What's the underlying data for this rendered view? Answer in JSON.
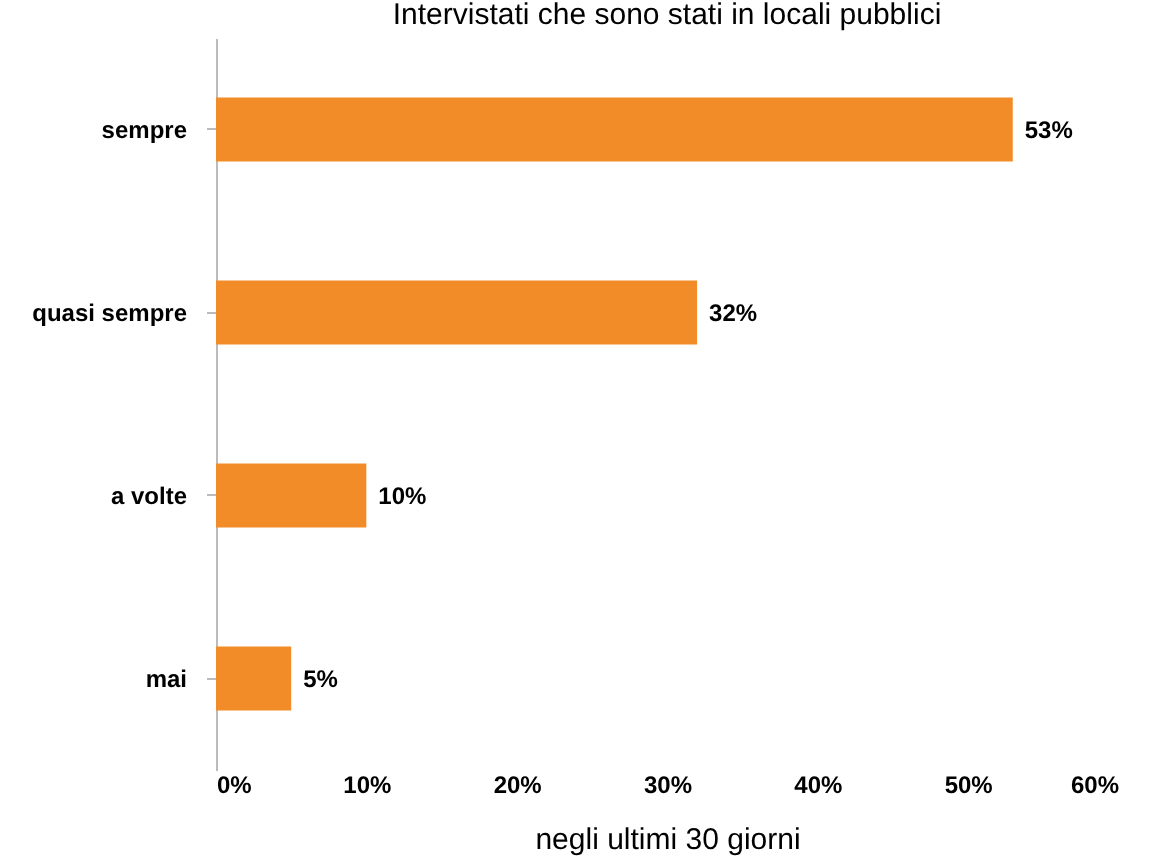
{
  "chart_data": {
    "type": "bar",
    "orientation": "horizontal",
    "title": "Intervistati che sono stati in locali pubblici",
    "xlabel": "negli ultimi 30 giorni",
    "categories": [
      "sempre",
      "quasi sempre",
      "a volte",
      "mai"
    ],
    "values": [
      53,
      32,
      10,
      5
    ],
    "color": "#f28c28",
    "value_labels": [
      "53%",
      "32%",
      "10%",
      "5%"
    ],
    "xlim": [
      0,
      60
    ],
    "xticks": [
      {
        "value": 0,
        "label": "0%"
      },
      {
        "value": 10,
        "label": "10%"
      },
      {
        "value": 20,
        "label": "20%"
      },
      {
        "value": 30,
        "label": "30%"
      },
      {
        "value": 40,
        "label": "40%"
      },
      {
        "value": 50,
        "label": "50%"
      },
      {
        "value": 60,
        "label": "60%"
      }
    ],
    "grid": false
  }
}
